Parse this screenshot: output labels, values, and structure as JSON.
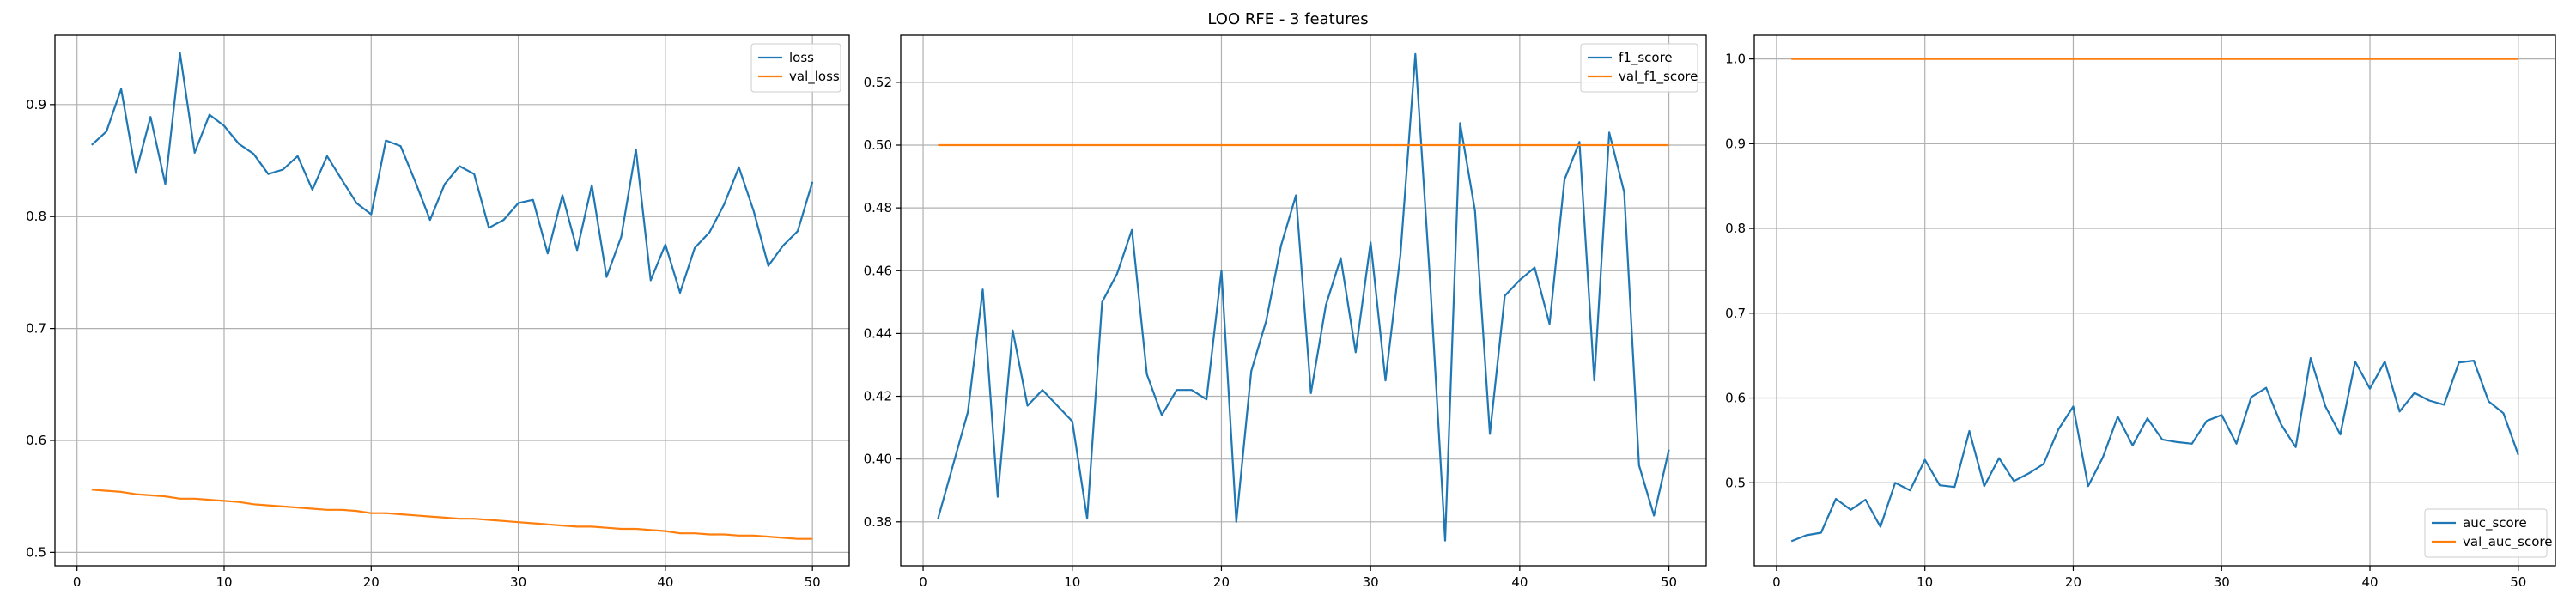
{
  "figure": {
    "title": "LOO RFE - 3 features",
    "grid": true
  },
  "colors": {
    "series_blue": "#1f77b4",
    "series_orange": "#ff7f0e",
    "grid": "#b0b0b0",
    "axis": "#000000"
  },
  "chart_data": [
    {
      "type": "line",
      "title": "",
      "xlabel": "",
      "ylabel": "",
      "xlim": [
        -1.5,
        52.5
      ],
      "ylim": [
        0.488,
        0.962
      ],
      "xticks": [
        0,
        10,
        20,
        30,
        40,
        50
      ],
      "yticks": [
        0.5,
        0.6,
        0.7,
        0.8,
        0.9
      ],
      "yticks_format": "1",
      "legend_position": "upper right",
      "x": [
        1,
        2,
        3,
        4,
        5,
        6,
        7,
        8,
        9,
        10,
        11,
        12,
        13,
        14,
        15,
        16,
        17,
        18,
        19,
        20,
        21,
        22,
        23,
        24,
        25,
        26,
        27,
        28,
        29,
        30,
        31,
        32,
        33,
        34,
        35,
        36,
        37,
        38,
        39,
        40,
        41,
        42,
        43,
        44,
        45,
        46,
        47,
        48,
        49,
        50
      ],
      "series": [
        {
          "name": "loss",
          "color": "#1f77b4",
          "values": [
            0.864,
            0.876,
            0.914,
            0.839,
            0.889,
            0.829,
            0.946,
            0.857,
            0.891,
            0.881,
            0.865,
            0.856,
            0.838,
            0.842,
            0.854,
            0.824,
            0.854,
            0.833,
            0.812,
            0.802,
            0.868,
            0.863,
            0.831,
            0.797,
            0.829,
            0.845,
            0.838,
            0.79,
            0.797,
            0.812,
            0.815,
            0.767,
            0.819,
            0.77,
            0.828,
            0.746,
            0.782,
            0.86,
            0.743,
            0.775,
            0.732,
            0.772,
            0.786,
            0.811,
            0.844,
            0.805,
            0.756,
            0.774,
            0.787,
            0.831
          ]
        },
        {
          "name": "val_loss",
          "color": "#ff7f0e",
          "values": [
            0.556,
            0.555,
            0.554,
            0.552,
            0.551,
            0.55,
            0.548,
            0.548,
            0.547,
            0.546,
            0.545,
            0.543,
            0.542,
            0.541,
            0.54,
            0.539,
            0.538,
            0.538,
            0.537,
            0.535,
            0.535,
            0.534,
            0.533,
            0.532,
            0.531,
            0.53,
            0.53,
            0.529,
            0.528,
            0.527,
            0.526,
            0.525,
            0.524,
            0.523,
            0.523,
            0.522,
            0.521,
            0.521,
            0.52,
            0.519,
            0.517,
            0.517,
            0.516,
            0.516,
            0.515,
            0.515,
            0.514,
            0.513,
            0.512,
            0.512
          ]
        }
      ]
    },
    {
      "type": "line",
      "title": "",
      "xlabel": "",
      "ylabel": "",
      "xlim": [
        -1.5,
        52.5
      ],
      "ylim": [
        0.366,
        0.535
      ],
      "xticks": [
        0,
        10,
        20,
        30,
        40,
        50
      ],
      "yticks": [
        0.38,
        0.4,
        0.42,
        0.44,
        0.46,
        0.48,
        0.5,
        0.52
      ],
      "yticks_format": "2",
      "legend_position": "upper right",
      "x": [
        1,
        2,
        3,
        4,
        5,
        6,
        7,
        8,
        9,
        10,
        11,
        12,
        13,
        14,
        15,
        16,
        17,
        18,
        19,
        20,
        21,
        22,
        23,
        24,
        25,
        26,
        27,
        28,
        29,
        30,
        31,
        32,
        33,
        34,
        35,
        36,
        37,
        38,
        39,
        40,
        41,
        42,
        43,
        44,
        45,
        46,
        47,
        48,
        49,
        50
      ],
      "series": [
        {
          "name": "f1_score",
          "color": "#1f77b4",
          "values": [
            0.381,
            0.398,
            0.415,
            0.454,
            0.388,
            0.441,
            0.417,
            0.422,
            0.417,
            0.412,
            0.381,
            0.45,
            0.459,
            0.473,
            0.427,
            0.414,
            0.422,
            0.422,
            0.419,
            0.46,
            0.38,
            0.428,
            0.444,
            0.468,
            0.484,
            0.421,
            0.449,
            0.464,
            0.434,
            0.469,
            0.425,
            0.465,
            0.529,
            0.456,
            0.374,
            0.507,
            0.479,
            0.408,
            0.452,
            0.457,
            0.461,
            0.443,
            0.489,
            0.501,
            0.425,
            0.504,
            0.485,
            0.398,
            0.382,
            0.403
          ]
        },
        {
          "name": "val_f1_score",
          "color": "#ff7f0e",
          "values": [
            0.5,
            0.5,
            0.5,
            0.5,
            0.5,
            0.5,
            0.5,
            0.5,
            0.5,
            0.5,
            0.5,
            0.5,
            0.5,
            0.5,
            0.5,
            0.5,
            0.5,
            0.5,
            0.5,
            0.5,
            0.5,
            0.5,
            0.5,
            0.5,
            0.5,
            0.5,
            0.5,
            0.5,
            0.5,
            0.5,
            0.5,
            0.5,
            0.5,
            0.5,
            0.5,
            0.5,
            0.5,
            0.5,
            0.5,
            0.5,
            0.5,
            0.5,
            0.5,
            0.5,
            0.5,
            0.5,
            0.5,
            0.5,
            0.5,
            0.5
          ]
        }
      ]
    },
    {
      "type": "line",
      "title": "",
      "xlabel": "",
      "ylabel": "",
      "xlim": [
        -1.5,
        52.5
      ],
      "ylim": [
        0.402,
        1.028
      ],
      "xticks": [
        0,
        10,
        20,
        30,
        40,
        50
      ],
      "yticks": [
        0.5,
        0.6,
        0.7,
        0.8,
        0.9,
        1.0
      ],
      "yticks_format": "1",
      "legend_position": "lower right",
      "x": [
        1,
        2,
        3,
        4,
        5,
        6,
        7,
        8,
        9,
        10,
        11,
        12,
        13,
        14,
        15,
        16,
        17,
        18,
        19,
        20,
        21,
        22,
        23,
        24,
        25,
        26,
        27,
        28,
        29,
        30,
        31,
        32,
        33,
        34,
        35,
        36,
        37,
        38,
        39,
        40,
        41,
        42,
        43,
        44,
        45,
        46,
        47,
        48,
        49,
        50
      ],
      "series": [
        {
          "name": "auc_score",
          "color": "#1f77b4",
          "values": [
            0.431,
            0.438,
            0.441,
            0.481,
            0.468,
            0.48,
            0.448,
            0.5,
            0.491,
            0.527,
            0.497,
            0.495,
            0.561,
            0.496,
            0.529,
            0.502,
            0.511,
            0.522,
            0.563,
            0.59,
            0.496,
            0.53,
            0.578,
            0.544,
            0.576,
            0.551,
            0.548,
            0.546,
            0.573,
            0.58,
            0.546,
            0.601,
            0.612,
            0.569,
            0.542,
            0.647,
            0.59,
            0.557,
            0.643,
            0.611,
            0.643,
            0.584,
            0.606,
            0.597,
            0.592,
            0.642,
            0.644,
            0.596,
            0.582,
            0.533
          ]
        },
        {
          "name": "val_auc_score",
          "color": "#ff7f0e",
          "values": [
            1.0,
            1.0,
            1.0,
            1.0,
            1.0,
            1.0,
            1.0,
            1.0,
            1.0,
            1.0,
            1.0,
            1.0,
            1.0,
            1.0,
            1.0,
            1.0,
            1.0,
            1.0,
            1.0,
            1.0,
            1.0,
            1.0,
            1.0,
            1.0,
            1.0,
            1.0,
            1.0,
            1.0,
            1.0,
            1.0,
            1.0,
            1.0,
            1.0,
            1.0,
            1.0,
            1.0,
            1.0,
            1.0,
            1.0,
            1.0,
            1.0,
            1.0,
            1.0,
            1.0,
            1.0,
            1.0,
            1.0,
            1.0,
            1.0,
            1.0
          ]
        }
      ]
    }
  ]
}
